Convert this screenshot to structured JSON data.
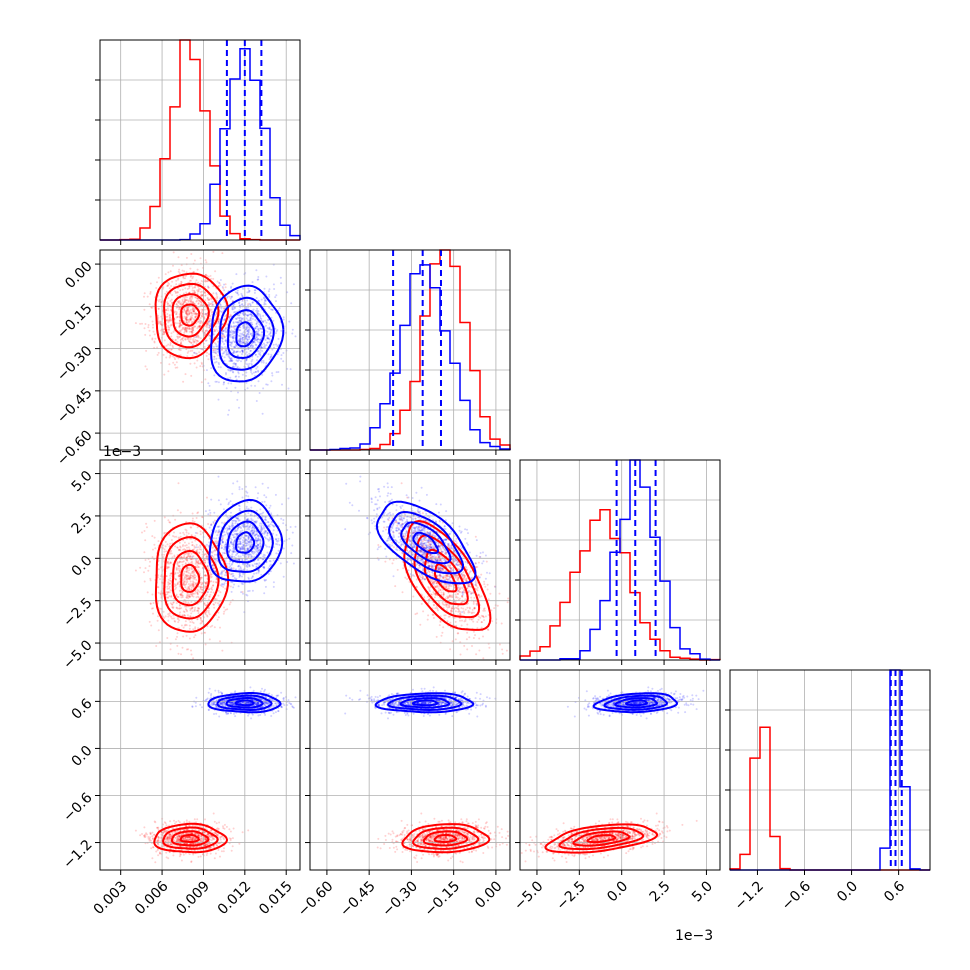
{
  "chart_data": {
    "type": "corner",
    "parameters": [
      {
        "range": [
          0.0015,
          0.016
        ],
        "ticks": [
          0.003,
          0.006,
          0.009,
          0.012,
          0.015
        ],
        "tick_labels": [
          "0.003",
          "0.006",
          "0.009",
          "0.012",
          "0.015"
        ]
      },
      {
        "range": [
          -0.66,
          0.05
        ],
        "ticks": [
          -0.6,
          -0.45,
          -0.3,
          -0.15,
          0.0
        ],
        "tick_labels": [
          "−0.60",
          "−0.45",
          "−0.30",
          "−0.15",
          "0.00"
        ]
      },
      {
        "range": [
          -6.0,
          5.8
        ],
        "ticks": [
          -5.0,
          -2.5,
          0.0,
          2.5,
          5.0
        ],
        "tick_labels": [
          "−5.0",
          "−2.5",
          "0.0",
          "2.5",
          "5.0"
        ],
        "offset_text": "1e−3"
      },
      {
        "range": [
          -1.55,
          1.0
        ],
        "ticks": [
          -1.2,
          -0.6,
          0.0,
          0.6
        ],
        "tick_labels": [
          "−1.2",
          "−0.6",
          "0.0",
          "0.6"
        ]
      }
    ],
    "series": [
      {
        "color": "#ff0000",
        "means": [
          0.008,
          -0.18,
          -1.2,
          -1.15
        ],
        "stds": [
          0.0013,
          0.075,
          1.6,
          0.09
        ],
        "correlations": {
          "1-2": -0.6,
          "2-3": 0.45,
          "1-3": 0.1,
          "0-1": 0.05,
          "0-2": 0.0,
          "0-3": 0.0
        }
      },
      {
        "color": "#0000ff",
        "means": [
          0.012,
          -0.25,
          0.9,
          0.58
        ],
        "stds": [
          0.0013,
          0.085,
          1.2,
          0.06
        ],
        "correlations": {
          "1-2": -0.6,
          "2-3": 0.2,
          "1-3": 0.05,
          "0-1": 0.1,
          "0-2": 0.1,
          "0-3": 0.0
        }
      }
    ],
    "quantile_lines": {
      "color": "#0000ff",
      "values": [
        [
          0.0107,
          0.012,
          0.0132
        ],
        [
          -0.365,
          -0.26,
          -0.195
        ],
        [
          -0.3,
          0.8,
          2.0
        ],
        [
          0.5,
          0.56,
          0.64
        ]
      ]
    },
    "grid": true
  }
}
